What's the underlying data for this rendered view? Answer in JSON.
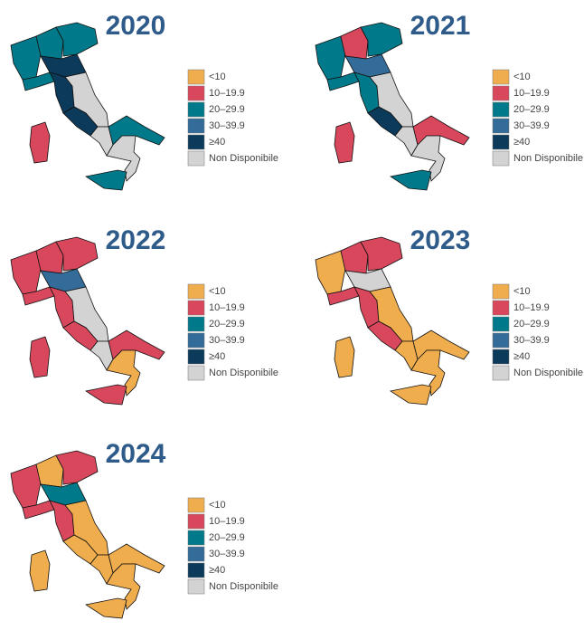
{
  "legend": [
    {
      "label": "<10",
      "color": "#f0ad4e"
    },
    {
      "label": "10–19.9",
      "color": "#d9475c"
    },
    {
      "label": "20–29.9",
      "color": "#007a8a"
    },
    {
      "label": "30–39.9",
      "color": "#336b99"
    },
    {
      "label": "≥40",
      "color": "#0b3a5a"
    },
    {
      "label": "Non Disponibile",
      "color": "#d3d3d3"
    }
  ],
  "maps": [
    {
      "year": "2020",
      "region_colors": [
        "#007a8a",
        "#007a8a",
        "#007a8a",
        "#007a8a",
        "#0b3a5a",
        "#0b3a5a",
        "#d3d3d3",
        "#0b3a5a",
        "#d3d3d3",
        "#007a8a",
        "#d3d3d3",
        "#007a8a",
        "#d9475c"
      ]
    },
    {
      "year": "2021",
      "region_colors": [
        "#007a8a",
        "#d9475c",
        "#007a8a",
        "#007a8a",
        "#336b99",
        "#007a8a",
        "#d3d3d3",
        "#0b3a5a",
        "#d3d3d3",
        "#d9475c",
        "#d3d3d3",
        "#007a8a",
        "#d9475c"
      ]
    },
    {
      "year": "2022",
      "region_colors": [
        "#d9475c",
        "#d9475c",
        "#d9475c",
        "#d9475c",
        "#336b99",
        "#d9475c",
        "#d3d3d3",
        "#d9475c",
        "#d3d3d3",
        "#d9475c",
        "#f0ad4e",
        "#d9475c",
        "#d9475c"
      ]
    },
    {
      "year": "2023",
      "region_colors": [
        "#f0ad4e",
        "#d9475c",
        "#d9475c",
        "#d9475c",
        "#d3d3d3",
        "#d9475c",
        "#f0ad4e",
        "#d9475c",
        "#f0ad4e",
        "#f0ad4e",
        "#f0ad4e",
        "#f0ad4e",
        "#f0ad4e"
      ]
    },
    {
      "year": "2024",
      "region_colors": [
        "#d9475c",
        "#f0ad4e",
        "#d9475c",
        "#d9475c",
        "#007a8a",
        "#d9475c",
        "#f0ad4e",
        "#f0ad4e",
        "#f0ad4e",
        "#f0ad4e",
        "#f0ad4e",
        "#f0ad4e",
        "#f0ad4e"
      ]
    }
  ]
}
